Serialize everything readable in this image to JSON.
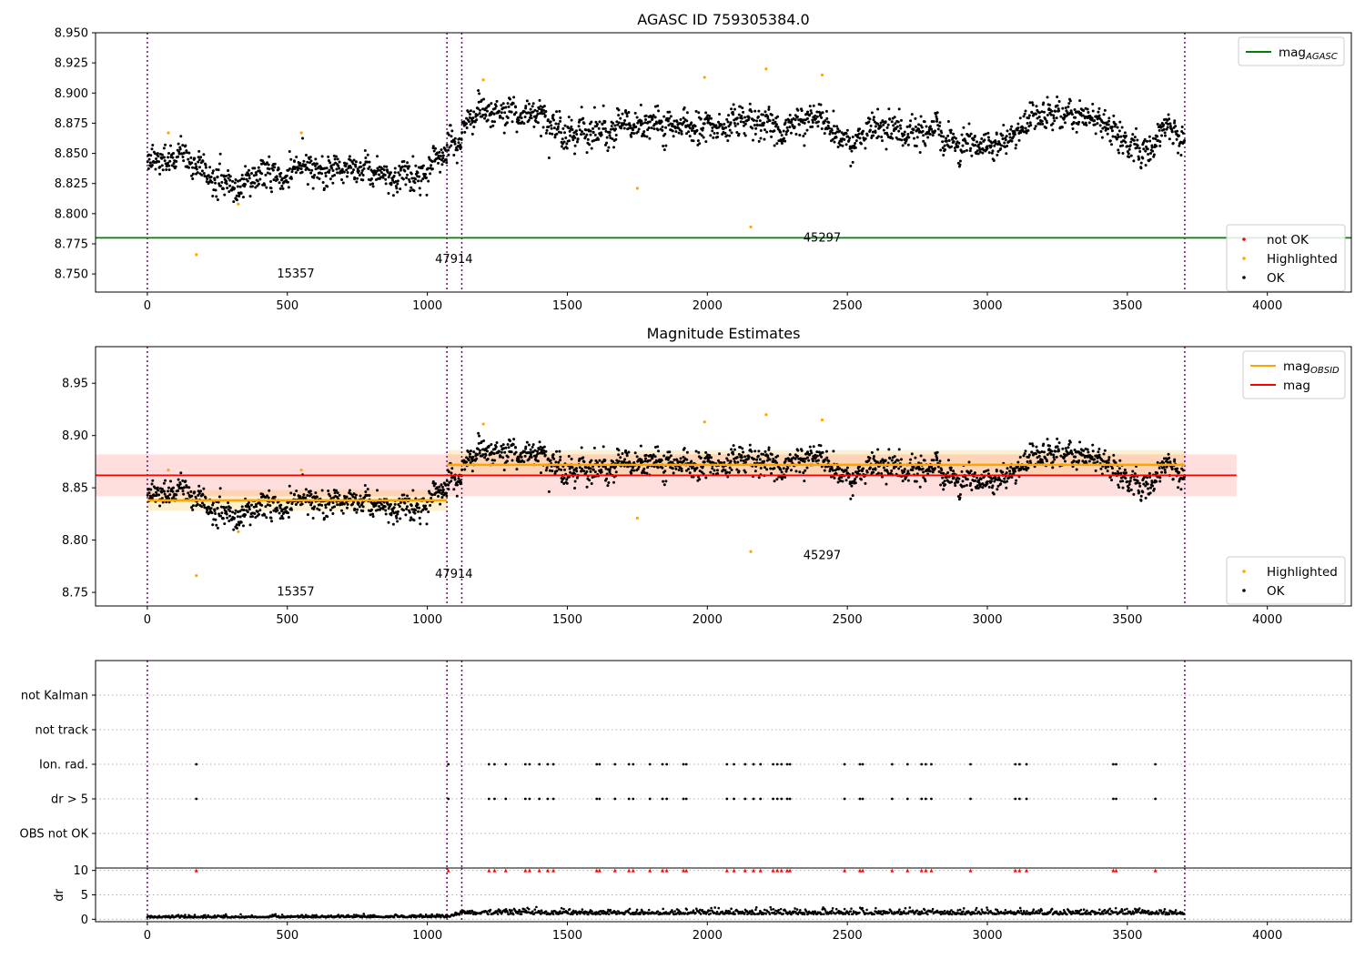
{
  "chart_data": [
    {
      "type": "scatter",
      "title": "AGASC ID 759305384.0",
      "xlim": [
        -185,
        4300
      ],
      "ylim": [
        8.735,
        8.95
      ],
      "xticks": [
        0,
        500,
        1000,
        1500,
        2000,
        2500,
        3000,
        3500,
        4000
      ],
      "yticks": [
        8.75,
        8.775,
        8.8,
        8.825,
        8.85,
        8.875,
        8.9,
        8.925,
        8.95
      ],
      "ytick_labels": [
        "8.750",
        "8.775",
        "8.800",
        "8.825",
        "8.850",
        "8.875",
        "8.900",
        "8.925",
        "8.950"
      ],
      "obsid_boundaries": [
        0,
        1070,
        1123,
        3705
      ],
      "obsid_labels": [
        {
          "text": "15357",
          "x": 530,
          "y": 8.747
        },
        {
          "text": "47914",
          "x": 1095,
          "y": 8.759
        },
        {
          "text": "45297",
          "x": 2410,
          "y": 8.777
        }
      ],
      "mag_agasc": 8.78,
      "legend_upper": {
        "placement": "upper right",
        "entries": [
          {
            "label": "mag",
            "sub": "AGASC",
            "color": "#008000"
          }
        ]
      },
      "legend_lower": {
        "placement": "lower right",
        "entries": [
          {
            "label": "not OK",
            "color": "#ff0000"
          },
          {
            "label": "Highlighted",
            "color": "#ffa500"
          },
          {
            "label": "OK",
            "color": "#000000"
          }
        ]
      },
      "highlighted_points": [
        [
          75,
          8.867
        ],
        [
          175,
          8.766
        ],
        [
          325,
          8.808
        ],
        [
          550,
          8.867
        ],
        [
          1200,
          8.911
        ],
        [
          1750,
          8.821
        ],
        [
          1990,
          8.913
        ],
        [
          2155,
          8.789
        ],
        [
          2210,
          8.92
        ],
        [
          2410,
          8.915
        ]
      ],
      "ok_segments": [
        {
          "x": [
            0,
            1070
          ],
          "levels": [
            [
              0,
              8.845
            ],
            [
              100,
              8.847
            ],
            [
              200,
              8.838
            ],
            [
              300,
              8.822
            ],
            [
              400,
              8.835
            ],
            [
              500,
              8.832
            ],
            [
              600,
              8.84
            ],
            [
              700,
              8.835
            ],
            [
              800,
              8.833
            ],
            [
              900,
              8.832
            ],
            [
              1000,
              8.835
            ],
            [
              1070,
              8.845
            ]
          ],
          "spread": 0.013
        },
        {
          "x": [
            1070,
            1123
          ],
          "levels": [
            [
              1070,
              8.862
            ],
            [
              1123,
              8.855
            ]
          ],
          "spread": 0.015
        },
        {
          "x": [
            1123,
            3705
          ],
          "levels": [
            [
              1123,
              8.875
            ],
            [
              1200,
              8.885
            ],
            [
              1400,
              8.88
            ],
            [
              1500,
              8.865
            ],
            [
              1700,
              8.872
            ],
            [
              1900,
              8.875
            ],
            [
              2000,
              8.865
            ],
            [
              2150,
              8.882
            ],
            [
              2250,
              8.868
            ],
            [
              2400,
              8.885
            ],
            [
              2500,
              8.86
            ],
            [
              2600,
              8.873
            ],
            [
              2800,
              8.865
            ],
            [
              2950,
              8.855
            ],
            [
              3050,
              8.858
            ],
            [
              3150,
              8.875
            ],
            [
              3250,
              8.885
            ],
            [
              3400,
              8.878
            ],
            [
              3550,
              8.85
            ],
            [
              3650,
              8.872
            ],
            [
              3705,
              8.86
            ]
          ],
          "spread": 0.013
        }
      ]
    },
    {
      "type": "scatter",
      "title": "Magnitude Estimates",
      "xlim": [
        -185,
        4300
      ],
      "ylim": [
        8.737,
        8.985
      ],
      "xticks": [
        0,
        500,
        1000,
        1500,
        2000,
        2500,
        3000,
        3500,
        4000
      ],
      "yticks": [
        8.75,
        8.8,
        8.85,
        8.9,
        8.95
      ],
      "ytick_labels": [
        "8.75",
        "8.80",
        "8.85",
        "8.90",
        "8.95"
      ],
      "obsid_boundaries": [
        0,
        1070,
        1123,
        3705
      ],
      "obsid_labels": [
        {
          "text": "15357",
          "x": 530,
          "y": 8.747
        },
        {
          "text": "47914",
          "x": 1095,
          "y": 8.764
        },
        {
          "text": "45297",
          "x": 2410,
          "y": 8.782
        }
      ],
      "mag": 8.862,
      "mag_band": [
        8.842,
        8.882
      ],
      "mag_x": [
        -185,
        3890
      ],
      "mag_obsid": [
        {
          "x": [
            0,
            1070
          ],
          "value": 8.838,
          "band": [
            8.828,
            8.848
          ]
        },
        {
          "x": [
            1070,
            3705
          ],
          "value": 8.872,
          "band": [
            8.862,
            8.886
          ]
        }
      ],
      "legend_upper": {
        "placement": "upper right",
        "entries": [
          {
            "label": "mag",
            "sub": "OBSID",
            "color": "#ffa500"
          },
          {
            "label": "mag",
            "sub": "",
            "color": "#ff0000"
          }
        ]
      },
      "legend_lower": {
        "placement": "lower right",
        "entries": [
          {
            "label": "Highlighted",
            "color": "#ffa500"
          },
          {
            "label": "OK",
            "color": "#000000"
          }
        ]
      }
    },
    {
      "type": "scatter",
      "title": "",
      "xlim": [
        -185,
        4300
      ],
      "flag_rows": [
        "not Kalman",
        "not track",
        "Ion. rad.",
        "dr > 5",
        "OBS not OK"
      ],
      "flag_x": [
        175,
        1075,
        1220,
        1240,
        1280,
        1350,
        1365,
        1400,
        1430,
        1450,
        1605,
        1615,
        1670,
        1720,
        1735,
        1795,
        1840,
        1855,
        1915,
        1925,
        2070,
        2095,
        2135,
        2165,
        2190,
        2235,
        2250,
        2265,
        2285,
        2295,
        2490,
        2545,
        2555,
        2660,
        2715,
        2765,
        2780,
        2800,
        2940,
        3100,
        3115,
        3140,
        3450,
        3460,
        3600
      ]
    },
    {
      "type": "scatter",
      "title": "",
      "ylabel": "dr",
      "xlim": [
        -185,
        4300
      ],
      "ylim": [
        -0.5,
        10.5
      ],
      "xticks": [
        0,
        500,
        1000,
        1500,
        2000,
        2500,
        3000,
        3500,
        4000
      ],
      "yticks": [
        0,
        5,
        10
      ],
      "ytick_labels": [
        "0",
        "5",
        "10"
      ],
      "dr_baseline": [
        [
          0,
          0.3
        ],
        [
          1070,
          0.4
        ],
        [
          1123,
          1.0
        ],
        [
          3705,
          1.0
        ]
      ],
      "dr_marker_value": 10
    }
  ]
}
